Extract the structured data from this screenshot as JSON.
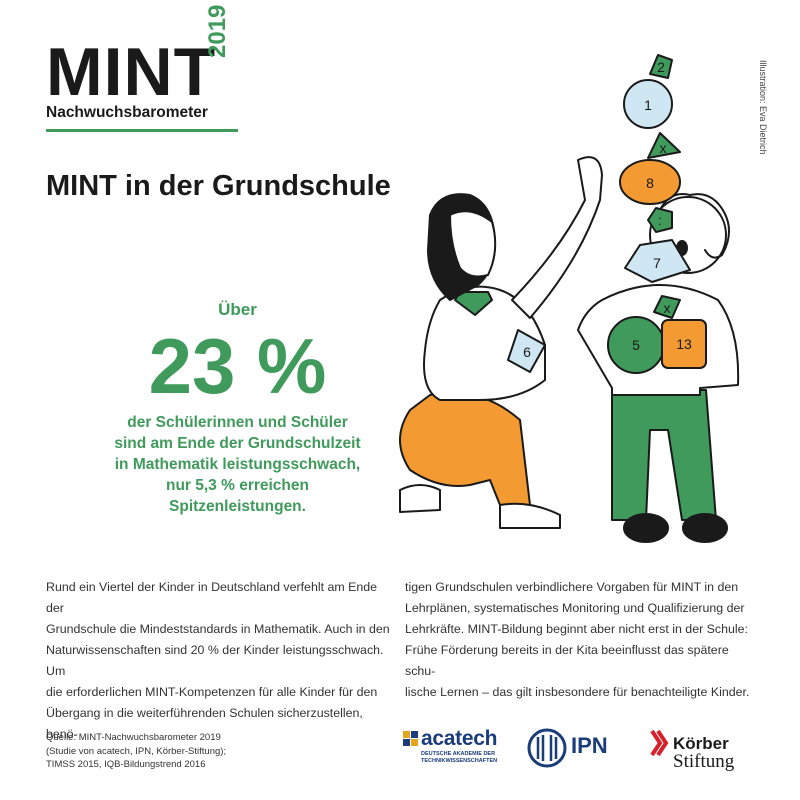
{
  "header": {
    "brand": "MINT",
    "subtitle": "Nachwuchsbarometer",
    "year": "2019"
  },
  "title": "MINT in der Grundschule",
  "stat": {
    "prefix": "Über",
    "value": "23 %",
    "description_lines": [
      "der Schülerinnen und Schüler",
      "sind am Ende der Grundschulzeit",
      "in Mathematik leistungsschwach,",
      "nur 5,3 % erreichen",
      "Spitzenleistungen."
    ]
  },
  "illustration": {
    "credit": "Illustration: Eva Dietrich",
    "tile_numbers": [
      "2",
      "1",
      "x",
      "8",
      ":",
      "7",
      "x",
      "6",
      "5",
      "13"
    ]
  },
  "body": {
    "col1_lines": [
      "Rund ein Viertel der Kinder in Deutschland verfehlt am Ende der",
      "Grundschule die Mindeststandards in Mathematik. Auch in den",
      "Naturwissenschaften sind 20 % der Kinder leistungsschwach. Um",
      "die erforderlichen MINT-Kompetenzen für alle Kinder für den",
      "Übergang in die weiterführenden Schulen sicherzustellen, benö-"
    ],
    "col2_lines": [
      "tigen Grundschulen verbindlichere Vorgaben für MINT in den",
      "Lehrplänen, systematisches Monitoring und Qualifizierung der",
      "Lehrkräfte. MINT-Bildung beginnt aber nicht erst in der Schule:",
      "Frühe Förderung bereits in der Kita beeinflusst das spätere schu-",
      "lische Lernen – das gilt insbesondere für benachteiligte Kinder."
    ]
  },
  "source_lines": [
    "Quelle: MINT-Nachwuchsbarometer 2019",
    "(Studie von acatech, IPN, Körber-Stiftung);",
    "TIMSS 2015, IQB-Bildungstrend 2016"
  ],
  "partners": {
    "acatech_name": "acatech",
    "acatech_sub_1": "DEUTSCHE AKADEMIE DER",
    "acatech_sub_2": "TECHNIKWISSENSCHAFTEN",
    "ipn_name": "IPN",
    "koerber_1": "Körber",
    "koerber_2": "Stiftung"
  },
  "colors": {
    "green": "#3f9a5b",
    "orange": "#f39b32",
    "light_blue": "#cfe6f3",
    "navy": "#1a3c7b",
    "red": "#d6202a"
  }
}
